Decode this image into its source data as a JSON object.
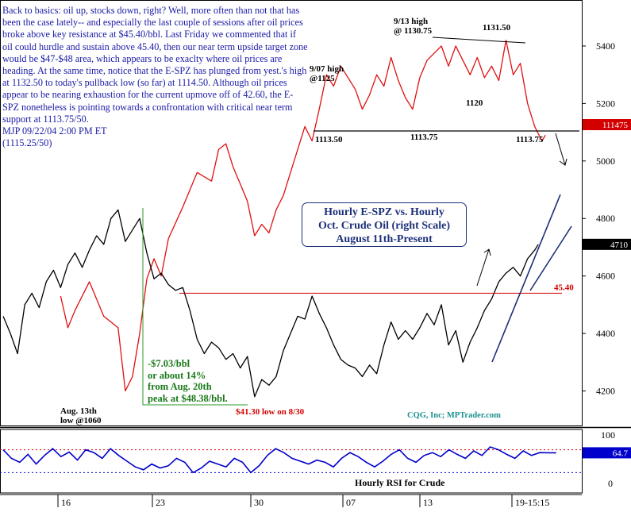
{
  "commentary": {
    "text": "Back to basics: oil up, stocks down, right? Well, more often than not that has been the case lately-- and especially the last couple of sessions after oil prices broke above key resistance at $45.40/bbl. Last Friday we commented that if oil could hurdle and sustain above 45.40, then our near term upside target zone would be $47-$48 area, which appears to be exaclty where oil prices are heading. At the same time, notice that the E-SPZ has plunged from yest.'s high at 1132.50 to today's pullback low (so far) at 1114.50. Although oil prices appear to be nearing exhaustion for the current upmove off of 42.60, the E-SPZ nonetheless is pointing towards a confrontation with critical near term support at 1113.75/50.",
    "signature": "MJP 09/22/04  2:00 PM ET",
    "quote": "(1115.25/50)"
  },
  "title_box": {
    "line1": "Hourly E-SPZ vs. Hourly",
    "line2": "Oct. Crude Oil (right Scale)",
    "line3": "August 11th-Present"
  },
  "drop_note": {
    "line1": "-$7.03/bbl",
    "line2": "or about 14%",
    "line3": "from Aug. 20th",
    "line4": "peak at $48.38/bbl."
  },
  "colors": {
    "espz": "#e01010",
    "crude": "#000000",
    "channel": "#1c2f78",
    "rsi": "#0000cc",
    "note_green": "#1a7a1a",
    "label_red": "#d40000",
    "badge_red": "#d40000",
    "badge_black": "#000000",
    "badge_blue": "#0000cc",
    "credit": "#1a9090"
  },
  "chart_data": {
    "type": "line",
    "title": "Hourly E-SPZ vs. Hourly Oct. Crude Oil (right Scale) August 11th-Present",
    "right_axis": {
      "ticks": [
        4200,
        4400,
        4600,
        4800,
        5000,
        5200,
        5400
      ],
      "range": [
        4080,
        5560
      ]
    },
    "x_axis": {
      "ticks": [
        "16",
        "23",
        "30",
        "07",
        "13",
        "19-15:15"
      ]
    },
    "grid": false,
    "series": [
      {
        "points": [
          [
            8,
            4530
          ],
          [
            9,
            4420
          ],
          [
            10,
            4480
          ],
          [
            12,
            4580
          ],
          [
            14,
            4460
          ],
          [
            16,
            4420
          ],
          [
            17,
            4200
          ],
          [
            18,
            4250
          ],
          [
            19,
            4400
          ],
          [
            20,
            4590
          ],
          [
            21,
            4660
          ],
          [
            22,
            4600
          ],
          [
            23,
            4730
          ],
          [
            25,
            4840
          ],
          [
            27,
            4960
          ],
          [
            29,
            4930
          ],
          [
            30,
            5040
          ],
          [
            31,
            5060
          ],
          [
            32,
            4980
          ],
          [
            33,
            4920
          ],
          [
            34,
            4860
          ],
          [
            35,
            4740
          ],
          [
            36,
            4780
          ],
          [
            37,
            4750
          ],
          [
            38,
            4830
          ],
          [
            39,
            4880
          ],
          [
            40,
            4960
          ],
          [
            42,
            5120
          ],
          [
            43,
            5070
          ],
          [
            44,
            5180
          ],
          [
            45,
            5300
          ],
          [
            46,
            5260
          ],
          [
            47,
            5330
          ],
          [
            49,
            5250
          ],
          [
            50,
            5180
          ],
          [
            51,
            5230
          ],
          [
            52,
            5300
          ],
          [
            53,
            5260
          ],
          [
            54,
            5360
          ],
          [
            55,
            5280
          ],
          [
            56,
            5220
          ],
          [
            57,
            5180
          ],
          [
            58,
            5290
          ],
          [
            59,
            5350
          ],
          [
            61,
            5400
          ],
          [
            62,
            5330
          ],
          [
            63,
            5400
          ],
          [
            64,
            5350
          ],
          [
            65,
            5300
          ],
          [
            66,
            5360
          ],
          [
            67,
            5290
          ],
          [
            68,
            5330
          ],
          [
            69,
            5280
          ],
          [
            70,
            5420
          ],
          [
            71,
            5300
          ],
          [
            72,
            5340
          ],
          [
            73,
            5200
          ],
          [
            74,
            5120
          ],
          [
            75,
            5070
          ],
          [
            75.5,
            5090
          ]
        ]
      },
      {
        "points": [
          [
            0,
            4460
          ],
          [
            1,
            4400
          ],
          [
            2,
            4330
          ],
          [
            3,
            4500
          ],
          [
            4,
            4540
          ],
          [
            5,
            4490
          ],
          [
            6,
            4580
          ],
          [
            7,
            4620
          ],
          [
            8,
            4560
          ],
          [
            9,
            4640
          ],
          [
            10,
            4680
          ],
          [
            11,
            4630
          ],
          [
            12,
            4690
          ],
          [
            13,
            4740
          ],
          [
            14,
            4710
          ],
          [
            15,
            4800
          ],
          [
            16,
            4830
          ],
          [
            17,
            4720
          ],
          [
            18,
            4760
          ],
          [
            19,
            4800
          ],
          [
            20,
            4680
          ],
          [
            21,
            4590
          ],
          [
            22,
            4610
          ],
          [
            23,
            4570
          ],
          [
            24,
            4550
          ],
          [
            25,
            4560
          ],
          [
            26,
            4480
          ],
          [
            27,
            4380
          ],
          [
            28,
            4330
          ],
          [
            29,
            4370
          ],
          [
            30,
            4350
          ],
          [
            31,
            4310
          ],
          [
            32,
            4330
          ],
          [
            33,
            4280
          ],
          [
            34,
            4320
          ],
          [
            35,
            4180
          ],
          [
            36,
            4240
          ],
          [
            37,
            4220
          ],
          [
            38,
            4250
          ],
          [
            39,
            4340
          ],
          [
            40,
            4400
          ],
          [
            41,
            4460
          ],
          [
            42,
            4450
          ],
          [
            43,
            4530
          ],
          [
            44,
            4470
          ],
          [
            45,
            4420
          ],
          [
            46,
            4360
          ],
          [
            47,
            4310
          ],
          [
            48,
            4290
          ],
          [
            49,
            4280
          ],
          [
            50,
            4250
          ],
          [
            51,
            4290
          ],
          [
            52,
            4260
          ],
          [
            53,
            4360
          ],
          [
            54,
            4440
          ],
          [
            55,
            4380
          ],
          [
            56,
            4410
          ],
          [
            57,
            4380
          ],
          [
            58,
            4420
          ],
          [
            59,
            4470
          ],
          [
            60,
            4430
          ],
          [
            61,
            4500
          ],
          [
            62,
            4360
          ],
          [
            63,
            4410
          ],
          [
            64,
            4300
          ],
          [
            65,
            4370
          ],
          [
            66,
            4420
          ],
          [
            67,
            4480
          ],
          [
            68,
            4520
          ],
          [
            69,
            4580
          ],
          [
            70,
            4610
          ],
          [
            71,
            4630
          ],
          [
            72,
            4600
          ],
          [
            73,
            4660
          ],
          [
            74,
            4690
          ],
          [
            74.5,
            4710
          ]
        ]
      }
    ],
    "rsi": {
      "label": "Hourly RSI for Crude",
      "ticks": [
        0,
        100
      ],
      "last": "64.7",
      "values": [
        70,
        55,
        48,
        62,
        45,
        60,
        72,
        58,
        66,
        52,
        70,
        65,
        55,
        72,
        60,
        50,
        40,
        35,
        45,
        38,
        42,
        55,
        48,
        30,
        38,
        50,
        45,
        40,
        55,
        48,
        30,
        42,
        60,
        72,
        65,
        55,
        50,
        45,
        52,
        48,
        40,
        55,
        65,
        58,
        48,
        40,
        50,
        62,
        70,
        55,
        48,
        60,
        65,
        58,
        70,
        62,
        55,
        68,
        60,
        75,
        70,
        62,
        55,
        68,
        60,
        65,
        64.7,
        64.7
      ]
    },
    "badges": {
      "espz_last": "111475",
      "crude_last": "4710",
      "rsi_last": "64.7"
    },
    "annotations": {
      "high_913": "9/13 high\n@ 1130.75",
      "level_1131": "1131.50",
      "high_907": "9/07 high\n@1125",
      "level_1120": "1120",
      "support_1": "1113.50",
      "support_2": "1113.75",
      "support_3": "1113.75",
      "low_aug13": "Aug. 13th\nlow @1060",
      "low_830": "$41.30 low on 8/30",
      "level_4540": "45.40",
      "credit": "CQG, Inc; MPTrader.com"
    }
  }
}
